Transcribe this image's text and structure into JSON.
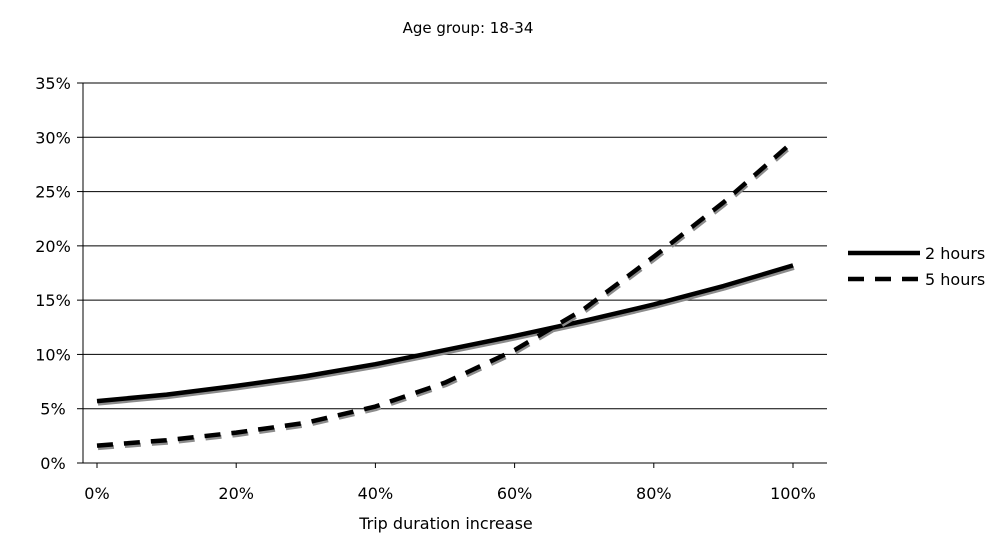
{
  "chart_data": {
    "type": "line",
    "title": "Age group: 18-34",
    "xlabel": "Trip duration increase",
    "ylabel": "",
    "xlim": [
      0,
      1.0
    ],
    "ylim": [
      0,
      0.35
    ],
    "x_ticks": [
      "0%",
      "20%",
      "40%",
      "60%",
      "80%",
      "100%"
    ],
    "y_ticks": [
      "0%",
      "5%",
      "10%",
      "15%",
      "20%",
      "25%",
      "30%",
      "35%"
    ],
    "grid": "horizontal",
    "legend_position": "right",
    "x": [
      0.0,
      0.1,
      0.2,
      0.3,
      0.4,
      0.5,
      0.6,
      0.7,
      0.8,
      0.9,
      1.0
    ],
    "series": [
      {
        "name": "2 hours",
        "style": "solid",
        "color": "#000000",
        "values": [
          0.057,
          0.063,
          0.071,
          0.08,
          0.091,
          0.104,
          0.117,
          0.131,
          0.146,
          0.163,
          0.182
        ]
      },
      {
        "name": "5 hours",
        "style": "dashed",
        "color": "#000000",
        "values": [
          0.016,
          0.021,
          0.028,
          0.037,
          0.052,
          0.074,
          0.104,
          0.142,
          0.19,
          0.24,
          0.296
        ]
      }
    ]
  }
}
